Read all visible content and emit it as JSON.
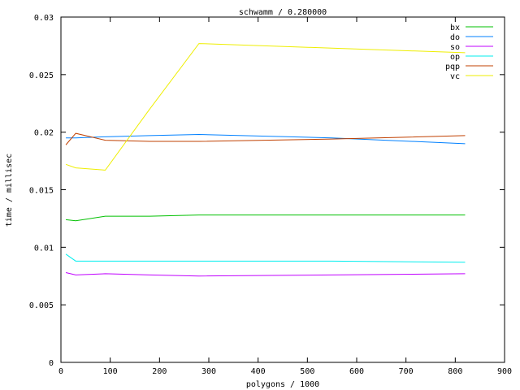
{
  "chart_data": {
    "type": "line",
    "title": "schwamm / 0.280000",
    "xlabel": "polygons / 1000",
    "ylabel": "time / millisec",
    "xlim": [
      0,
      900
    ],
    "ylim": [
      0,
      0.03
    ],
    "xticks": [
      "0",
      "100",
      "200",
      "300",
      "400",
      "500",
      "600",
      "700",
      "800",
      "900"
    ],
    "yticks": [
      "0",
      "0.005",
      "0.01",
      "0.015",
      "0.02",
      "0.025",
      "0.03"
    ],
    "grid": false,
    "legend_position": "top-right",
    "x": [
      10,
      30,
      90,
      180,
      280,
      550,
      820
    ],
    "series": [
      {
        "name": "bx",
        "color": "#00c000",
        "values": [
          0.0124,
          0.0123,
          0.0127,
          0.0127,
          0.0128,
          0.0128,
          0.0128
        ]
      },
      {
        "name": "do",
        "color": "#0080ff",
        "values": [
          0.0195,
          0.0195,
          0.0196,
          0.0197,
          0.0198,
          0.0195,
          0.019
        ]
      },
      {
        "name": "so",
        "color": "#c000ff",
        "values": [
          0.0078,
          0.0076,
          0.0077,
          0.0076,
          0.0075,
          0.0076,
          0.0077
        ]
      },
      {
        "name": "op",
        "color": "#00eeee",
        "values": [
          0.0094,
          0.0088,
          0.0088,
          0.0088,
          0.0088,
          0.0088,
          0.0087
        ]
      },
      {
        "name": "pqp",
        "color": "#c04000",
        "values": [
          0.0189,
          0.0199,
          0.0193,
          0.0192,
          0.0192,
          0.0194,
          0.0197
        ]
      },
      {
        "name": "vc",
        "color": "#eeee00",
        "values": [
          0.0172,
          0.0169,
          0.0167,
          0.022,
          0.0277,
          0.0273,
          0.0269
        ]
      }
    ]
  }
}
